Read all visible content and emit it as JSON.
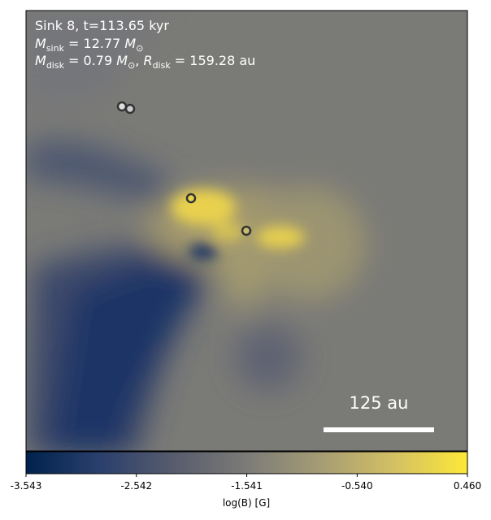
{
  "chart_data": {
    "type": "colormap-image",
    "annotation_lines": [
      {
        "parts": [
          "Sink 8, t=113.65 kyr"
        ]
      },
      {
        "parts": [
          "M",
          "sink",
          " = 12.77 ",
          "M",
          "⊙"
        ]
      },
      {
        "parts": [
          "M",
          "disk",
          " = 0.79 ",
          "M",
          "⊙",
          ", ",
          "R",
          "disk",
          " = 159.28 au"
        ]
      }
    ],
    "scale_bar_label": "125 au",
    "colorbar": {
      "label": "log(B) [G]",
      "lim": [
        -3.543,
        0.46
      ],
      "ticks": [
        -3.543,
        -2.542,
        -1.541,
        {
          "value": -0.54,
          "label": "-0.540"
        },
        {
          "value": 0.46,
          "label": "0.460"
        }
      ],
      "colormap": [
        "#00224e",
        "#2a3f6c",
        "#575c6d",
        "#7c7b78",
        "#a59c74",
        "#d3c064",
        "#fee838"
      ]
    }
  }
}
